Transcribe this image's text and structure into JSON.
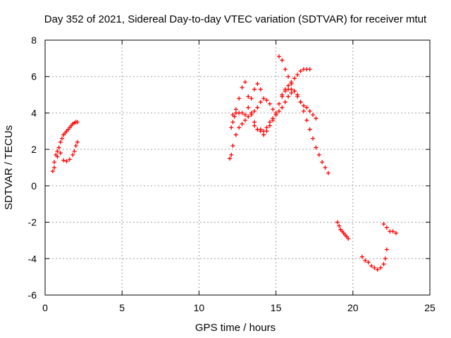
{
  "chart_data": {
    "type": "scatter",
    "title": "Day 352 of 2021, Sidereal Day-to-day VTEC variation (SDTVAR) for receiver mtut",
    "xlabel": "GPS time / hours",
    "ylabel": "SDTVAR / TECUs",
    "xlim": [
      0,
      25
    ],
    "ylim": [
      -6,
      8
    ],
    "xticks": [
      "0",
      "5",
      "10",
      "15",
      "20",
      "25"
    ],
    "yticks": [
      "-6",
      "-4",
      "-2",
      "0",
      "2",
      "4",
      "6",
      "8"
    ],
    "grid": true,
    "marker": "+",
    "color": "#ff0000",
    "series": [
      {
        "name": "",
        "x": [
          0.5,
          0.6,
          0.7,
          0.8,
          0.9,
          1.0,
          1.1,
          1.2,
          1.3,
          1.4,
          1.5,
          1.6,
          1.7,
          1.8,
          1.9,
          2.0,
          2.1
        ],
        "y": [
          0.8,
          1.3,
          1.7,
          1.9,
          2.1,
          2.4,
          2.6,
          2.8,
          2.9,
          3.0,
          3.1,
          3.2,
          3.3,
          3.4,
          3.45,
          3.5,
          3.5
        ]
      },
      {
        "name": "",
        "x": [
          0.6,
          0.8,
          1.0,
          1.2,
          1.4,
          1.6,
          1.8,
          1.9,
          2.0,
          2.1
        ],
        "y": [
          1.0,
          1.6,
          1.8,
          1.4,
          1.35,
          1.45,
          1.7,
          1.9,
          2.2,
          2.4
        ]
      },
      {
        "name": "",
        "x": [
          12.1,
          12.2,
          12.3,
          12.4,
          12.6,
          12.8,
          13.0,
          13.2,
          13.4,
          13.6,
          13.8,
          14.0,
          14.2,
          14.4,
          14.6,
          14.8,
          15.0,
          15.2,
          15.4,
          15.6,
          15.8,
          16.0
        ],
        "y": [
          3.2,
          3.5,
          3.8,
          4.2,
          4.8,
          5.4,
          5.7,
          4.9,
          4.0,
          3.5,
          3.1,
          3.1,
          3.0,
          3.2,
          3.5,
          3.7,
          3.9,
          4.1,
          4.3,
          4.6,
          4.9,
          5.1
        ]
      },
      {
        "name": "",
        "x": [
          12.0,
          12.1,
          12.2,
          12.4,
          12.6,
          12.8,
          13.0,
          13.2,
          13.4,
          13.6,
          13.8,
          14.0,
          14.2,
          14.4,
          14.6,
          14.8,
          15.0
        ],
        "y": [
          1.5,
          1.7,
          2.2,
          2.8,
          3.2,
          3.4,
          3.6,
          3.8,
          3.9,
          4.1,
          4.3,
          4.6,
          4.8,
          4.7,
          4.5,
          4.2,
          3.9
        ]
      },
      {
        "name": "",
        "x": [
          12.2,
          12.4,
          12.6,
          12.8,
          13.0,
          13.2,
          13.4,
          13.6,
          13.8,
          14.0
        ],
        "y": [
          3.9,
          4.0,
          4.0,
          4.0,
          3.9,
          4.3,
          4.8,
          5.3,
          5.6,
          5.3
        ]
      },
      {
        "name": "",
        "x": [
          13.6,
          13.8,
          14.0,
          14.2,
          14.4,
          14.6,
          14.8,
          15.0,
          15.2,
          15.4,
          15.6,
          15.8,
          16.0,
          16.2,
          16.4,
          16.6,
          16.8,
          17.0,
          17.2,
          17.4,
          17.6,
          17.8,
          18.0,
          18.2,
          18.4
        ],
        "y": [
          3.3,
          3.1,
          3.0,
          2.8,
          3.0,
          3.3,
          3.6,
          4.0,
          4.5,
          4.9,
          5.2,
          5.3,
          5.3,
          5.2,
          5.0,
          4.6,
          4.1,
          3.6,
          3.1,
          2.6,
          2.1,
          1.7,
          1.3,
          1.0,
          0.7
        ]
      },
      {
        "name": "",
        "x": [
          15.2,
          15.4,
          15.6,
          15.8,
          16.0,
          16.2,
          16.4,
          16.6,
          16.8,
          17.0,
          17.2,
          17.4,
          17.6
        ],
        "y": [
          7.1,
          6.9,
          6.4,
          6.0,
          5.6,
          5.2,
          4.9,
          4.6,
          4.4,
          4.3,
          4.1,
          3.9,
          3.7
        ]
      },
      {
        "name": "",
        "x": [
          15.4,
          15.6,
          15.8,
          16.0,
          16.2,
          16.4,
          16.6,
          16.8,
          17.0,
          17.2
        ],
        "y": [
          5.0,
          5.3,
          5.5,
          5.7,
          5.9,
          6.1,
          6.3,
          6.4,
          6.4,
          6.4
        ]
      },
      {
        "name": "",
        "x": [
          19.0,
          19.1,
          19.2,
          19.3,
          19.4,
          19.5,
          19.6,
          19.7
        ],
        "y": [
          -2.0,
          -2.2,
          -2.4,
          -2.5,
          -2.6,
          -2.7,
          -2.8,
          -2.9
        ]
      },
      {
        "name": "",
        "x": [
          20.6,
          20.8,
          21.0,
          21.2,
          21.4,
          21.6,
          21.8,
          22.0,
          22.1,
          22.2
        ],
        "y": [
          -3.9,
          -4.1,
          -4.2,
          -4.4,
          -4.5,
          -4.6,
          -4.5,
          -4.3,
          -4.0,
          -3.5
        ]
      },
      {
        "name": "",
        "x": [
          22.0,
          22.2,
          22.4,
          22.6,
          22.8
        ],
        "y": [
          -2.1,
          -2.3,
          -2.5,
          -2.5,
          -2.6
        ]
      }
    ]
  }
}
